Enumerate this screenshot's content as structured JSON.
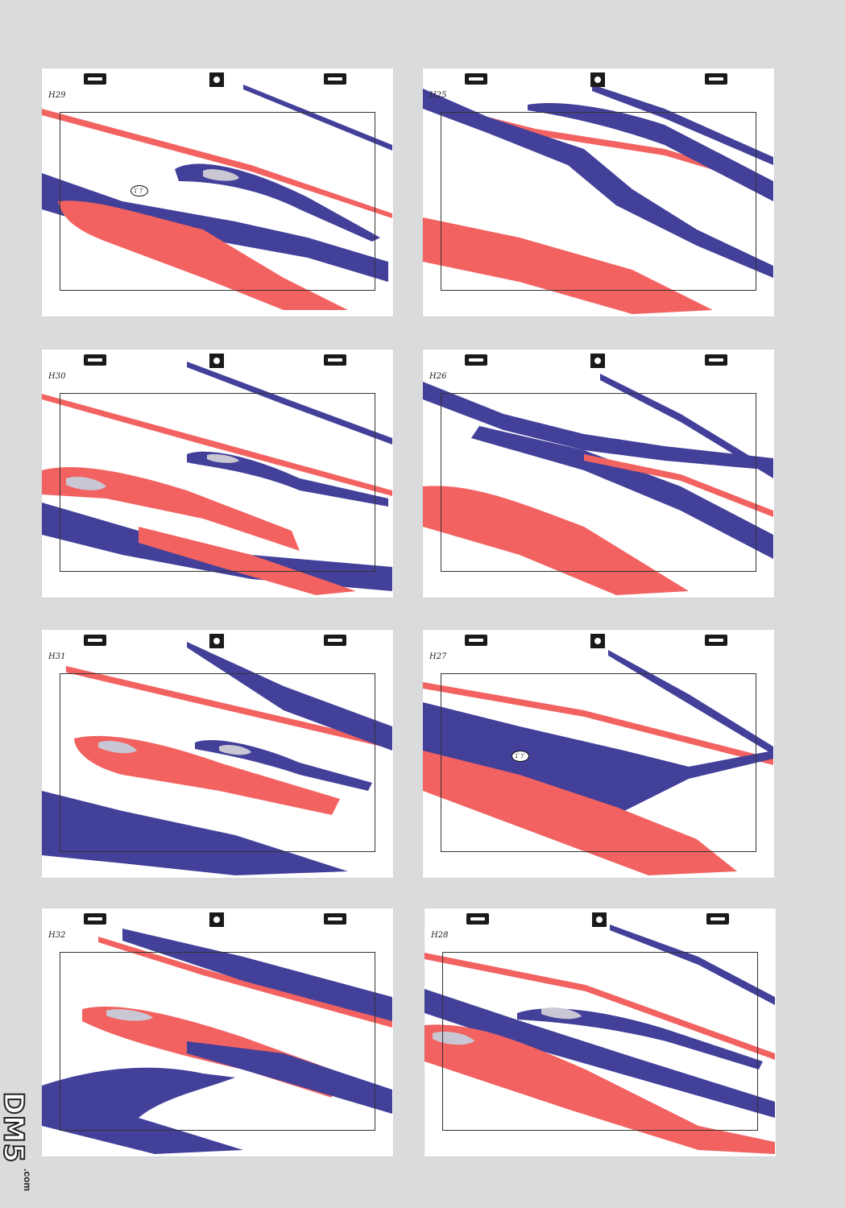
{
  "colors": {
    "blue": "#43409a",
    "red": "#f26260",
    "highlight": "#c9c7d3",
    "paper": "#ffffff",
    "background": "#d9dbdd"
  },
  "sheets": [
    {
      "label": "H29",
      "variant": 0,
      "note": "ｺﾞﾌﾞ"
    },
    {
      "label": "H25",
      "variant": 1
    },
    {
      "label": "H30",
      "variant": 2
    },
    {
      "label": "H26",
      "variant": 3
    },
    {
      "label": "H31",
      "variant": 4
    },
    {
      "label": "H27",
      "variant": 5,
      "note": "ｺﾞﾌﾞ"
    },
    {
      "label": "H32",
      "variant": 6
    },
    {
      "label": "H28",
      "variant": 7
    }
  ],
  "watermark": {
    "main": "DM5",
    "sub": ".com"
  }
}
